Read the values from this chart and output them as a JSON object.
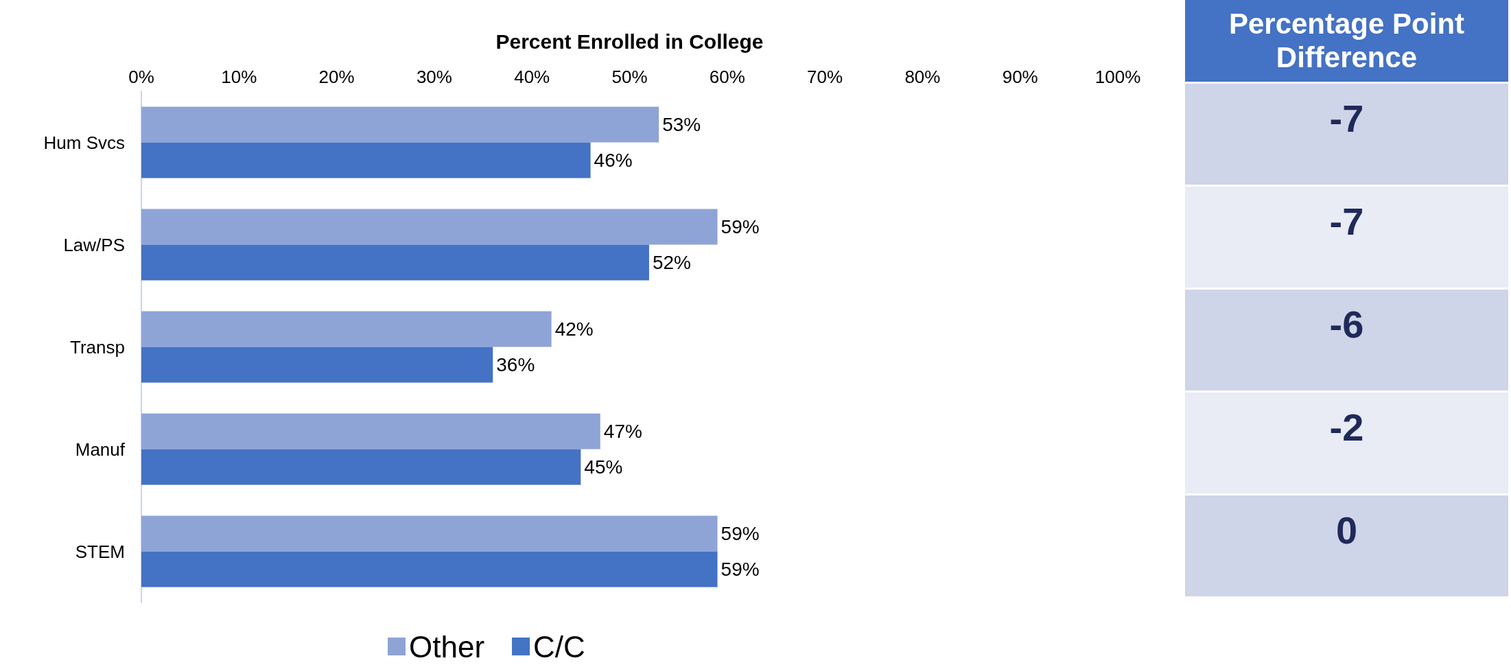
{
  "chart_data": [
    {
      "type": "bar",
      "orientation": "horizontal",
      "xlabel": "Percent Enrolled in College",
      "categories": [
        "Hum Svcs",
        "Law/PS",
        "Transp",
        "Manuf",
        "STEM"
      ],
      "series": [
        {
          "name": "Other",
          "color": "#8fa4d6",
          "values": [
            53,
            59,
            42,
            47,
            59
          ],
          "value_labels": [
            "53%",
            "59%",
            "42%",
            "47%",
            "59%"
          ]
        },
        {
          "name": "C/C",
          "color": "#4472c4",
          "values": [
            46,
            52,
            36,
            45,
            59
          ],
          "value_labels": [
            "46%",
            "52%",
            "36%",
            "45%",
            "59%"
          ]
        }
      ],
      "xlim": [
        0,
        100
      ],
      "xticks": [
        {
          "value": 0,
          "label": "0%"
        },
        {
          "value": 10,
          "label": "10%"
        },
        {
          "value": 20,
          "label": "20%"
        },
        {
          "value": 30,
          "label": "30%"
        },
        {
          "value": 40,
          "label": "40%"
        },
        {
          "value": 50,
          "label": "50%"
        },
        {
          "value": 60,
          "label": "60%"
        },
        {
          "value": 70,
          "label": "70%"
        },
        {
          "value": 80,
          "label": "80%"
        },
        {
          "value": 90,
          "label": "90%"
        },
        {
          "value": 100,
          "label": "100%"
        }
      ],
      "grid": false,
      "legend": "bottom"
    },
    {
      "type": "other",
      "title": "Percentage Point Difference",
      "annotations": [
        "-7",
        "-7",
        "-6",
        "-2",
        "0"
      ]
    }
  ]
}
